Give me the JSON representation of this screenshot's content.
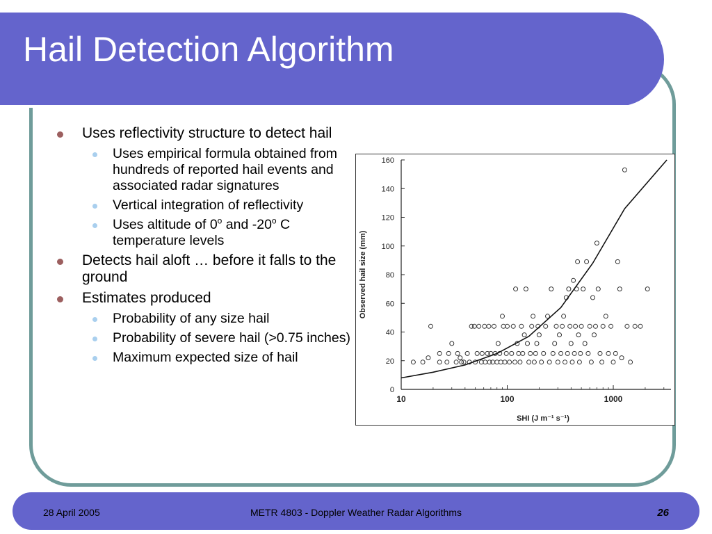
{
  "slide": {
    "title": "Hail Detection Algorithm",
    "bullets": [
      {
        "text": "Uses reflectivity structure to detect hail",
        "sub": [
          "Uses empirical formula obtained from hundreds of reported hail events and associated radar signatures",
          "Vertical integration of reflectivity",
          "Uses altitude of 0o and -20o C temperature levels"
        ]
      },
      {
        "text": "Detects hail aloft … before it falls to the ground",
        "sub": []
      },
      {
        "text": "Estimates produced",
        "sub": [
          "Probability of any size hail",
          "Probability of severe hail (>0.75 inches)",
          "Maximum expected size of hail"
        ]
      }
    ],
    "temp_line": {
      "pre": "Uses altitude of 0",
      "sup1": "o",
      "mid": " and -20",
      "sup2": "o",
      "post": " C temperature levels"
    }
  },
  "footer": {
    "date": "28 April 2005",
    "course": "METR 4803 - Doppler Weather Radar Algorithms",
    "page": "26"
  },
  "colors": {
    "title_bar": "#6464cc",
    "frame": "#6f9c9a",
    "bullet_l1": "#9c5f5f",
    "bullet_l2": "#a9cfee"
  },
  "chart_data": {
    "type": "scatter",
    "xlabel": "SHI (J m⁻¹ s⁻¹)",
    "ylabel": "Observed hail size  (mm)",
    "x_scale": "log",
    "xlim": [
      10,
      3500
    ],
    "ylim": [
      0,
      160
    ],
    "x_ticks": [
      10,
      100,
      1000
    ],
    "x_tick_labels": [
      "10",
      "100",
      "1000"
    ],
    "y_ticks": [
      0,
      20,
      40,
      60,
      80,
      100,
      120,
      140,
      160
    ],
    "y_tick_labels": [
      "0",
      "20",
      "40",
      "60",
      "80",
      "100",
      "120",
      "140",
      "160"
    ],
    "grid": false,
    "series": [
      {
        "marker": "circle-open",
        "points": [
          [
            13,
            19
          ],
          [
            16,
            19
          ],
          [
            18,
            22
          ],
          [
            19,
            44
          ],
          [
            23,
            25
          ],
          [
            23,
            19
          ],
          [
            27,
            19
          ],
          [
            28,
            25
          ],
          [
            30,
            32
          ],
          [
            33,
            19
          ],
          [
            34,
            25
          ],
          [
            36,
            22
          ],
          [
            37,
            19
          ],
          [
            39,
            19
          ],
          [
            42,
            25
          ],
          [
            44,
            19
          ],
          [
            46,
            44
          ],
          [
            49,
            44
          ],
          [
            50,
            19
          ],
          [
            52,
            25
          ],
          [
            54,
            44
          ],
          [
            57,
            19
          ],
          [
            58,
            25
          ],
          [
            61,
            44
          ],
          [
            62,
            19
          ],
          [
            65,
            25
          ],
          [
            67,
            44
          ],
          [
            68,
            19
          ],
          [
            70,
            25
          ],
          [
            73,
            19
          ],
          [
            75,
            44
          ],
          [
            77,
            25
          ],
          [
            80,
            19
          ],
          [
            82,
            32
          ],
          [
            85,
            25
          ],
          [
            87,
            19
          ],
          [
            90,
            51
          ],
          [
            92,
            44
          ],
          [
            95,
            19
          ],
          [
            98,
            25
          ],
          [
            100,
            44
          ],
          [
            105,
            19
          ],
          [
            110,
            25
          ],
          [
            114,
            44
          ],
          [
            118,
            19
          ],
          [
            120,
            70
          ],
          [
            124,
            32
          ],
          [
            128,
            25
          ],
          [
            132,
            19
          ],
          [
            136,
            44
          ],
          [
            140,
            25
          ],
          [
            145,
            38
          ],
          [
            150,
            70
          ],
          [
            155,
            32
          ],
          [
            160,
            19
          ],
          [
            165,
            25
          ],
          [
            170,
            44
          ],
          [
            175,
            51
          ],
          [
            180,
            19
          ],
          [
            185,
            25
          ],
          [
            190,
            32
          ],
          [
            195,
            44
          ],
          [
            200,
            38
          ],
          [
            210,
            19
          ],
          [
            220,
            25
          ],
          [
            230,
            44
          ],
          [
            240,
            51
          ],
          [
            250,
            19
          ],
          [
            260,
            70
          ],
          [
            270,
            25
          ],
          [
            280,
            32
          ],
          [
            290,
            44
          ],
          [
            300,
            19
          ],
          [
            310,
            38
          ],
          [
            320,
            25
          ],
          [
            330,
            44
          ],
          [
            340,
            51
          ],
          [
            350,
            19
          ],
          [
            360,
            64
          ],
          [
            370,
            25
          ],
          [
            380,
            70
          ],
          [
            390,
            44
          ],
          [
            400,
            32
          ],
          [
            410,
            19
          ],
          [
            420,
            76
          ],
          [
            430,
            25
          ],
          [
            440,
            44
          ],
          [
            450,
            70
          ],
          [
            460,
            89
          ],
          [
            470,
            38
          ],
          [
            480,
            19
          ],
          [
            490,
            25
          ],
          [
            500,
            44
          ],
          [
            520,
            70
          ],
          [
            540,
            32
          ],
          [
            560,
            89
          ],
          [
            580,
            25
          ],
          [
            600,
            44
          ],
          [
            620,
            19
          ],
          [
            640,
            64
          ],
          [
            660,
            38
          ],
          [
            680,
            44
          ],
          [
            700,
            102
          ],
          [
            720,
            70
          ],
          [
            750,
            25
          ],
          [
            780,
            19
          ],
          [
            800,
            44
          ],
          [
            850,
            51
          ],
          [
            900,
            25
          ],
          [
            950,
            44
          ],
          [
            1000,
            19
          ],
          [
            1050,
            25
          ],
          [
            1100,
            89
          ],
          [
            1150,
            70
          ],
          [
            1200,
            22
          ],
          [
            1280,
            153
          ],
          [
            1350,
            44
          ],
          [
            1450,
            19
          ],
          [
            1600,
            44
          ],
          [
            1800,
            44
          ],
          [
            2100,
            70
          ]
        ]
      },
      {
        "type": "curve",
        "marker": "line",
        "points": [
          [
            10,
            8
          ],
          [
            20,
            12
          ],
          [
            40,
            17
          ],
          [
            80,
            25
          ],
          [
            160,
            37
          ],
          [
            320,
            57
          ],
          [
            640,
            88
          ],
          [
            1280,
            126
          ],
          [
            3200,
            160
          ]
        ]
      }
    ]
  }
}
